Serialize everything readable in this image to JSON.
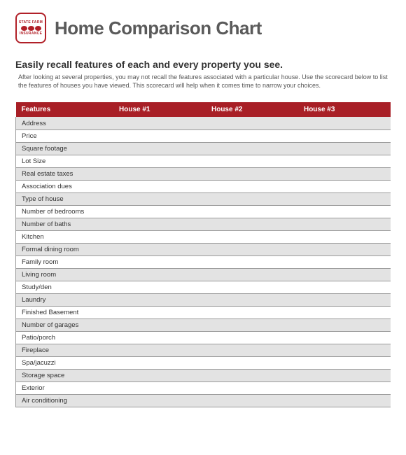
{
  "logo": {
    "top_text": "STATE FARM",
    "bottom_text": "INSURANCE",
    "border_color": "#b12028",
    "oval_color": "#b12028"
  },
  "header": {
    "title": "Home Comparison Chart",
    "title_color": "#5a5a5a",
    "title_fontsize": 26
  },
  "intro": {
    "subtitle": "Easily recall features of each and every property you see.",
    "description": "After looking at several properties, you may not recall the features associated with a particular house. Use the scorecard below to list the features of houses you have viewed. This scorecard will help when it comes time to narrow your choices."
  },
  "table": {
    "type": "table",
    "header_bg": "#a81f26",
    "header_text_color": "#ffffff",
    "row_odd_bg": "#e3e3e3",
    "row_even_bg": "#ffffff",
    "border_color": "#9a9a9a",
    "columns": [
      "Features",
      "House #1",
      "House #2",
      "House #3"
    ],
    "rows": [
      [
        "Address",
        "",
        "",
        ""
      ],
      [
        "Price",
        "",
        "",
        ""
      ],
      [
        "Square footage",
        "",
        "",
        ""
      ],
      [
        "Lot Size",
        "",
        "",
        ""
      ],
      [
        "Real estate taxes",
        "",
        "",
        ""
      ],
      [
        "Association dues",
        "",
        "",
        ""
      ],
      [
        "Type of house",
        "",
        "",
        ""
      ],
      [
        "Number of bedrooms",
        "",
        "",
        ""
      ],
      [
        "Number of baths",
        "",
        "",
        ""
      ],
      [
        "Kitchen",
        "",
        "",
        ""
      ],
      [
        "Formal dining room",
        "",
        "",
        ""
      ],
      [
        "Family room",
        "",
        "",
        ""
      ],
      [
        "Living room",
        "",
        "",
        ""
      ],
      [
        "Study/den",
        "",
        "",
        ""
      ],
      [
        "Laundry",
        "",
        "",
        ""
      ],
      [
        "Finished Basement",
        "",
        "",
        ""
      ],
      [
        "Number of garages",
        "",
        "",
        ""
      ],
      [
        "Patio/porch",
        "",
        "",
        ""
      ],
      [
        "Fireplace",
        "",
        "",
        ""
      ],
      [
        "Spa/jacuzzi",
        "",
        "",
        ""
      ],
      [
        "Storage space",
        "",
        "",
        ""
      ],
      [
        "Exterior",
        "",
        "",
        ""
      ],
      [
        "Air conditioning",
        "",
        "",
        ""
      ]
    ]
  }
}
